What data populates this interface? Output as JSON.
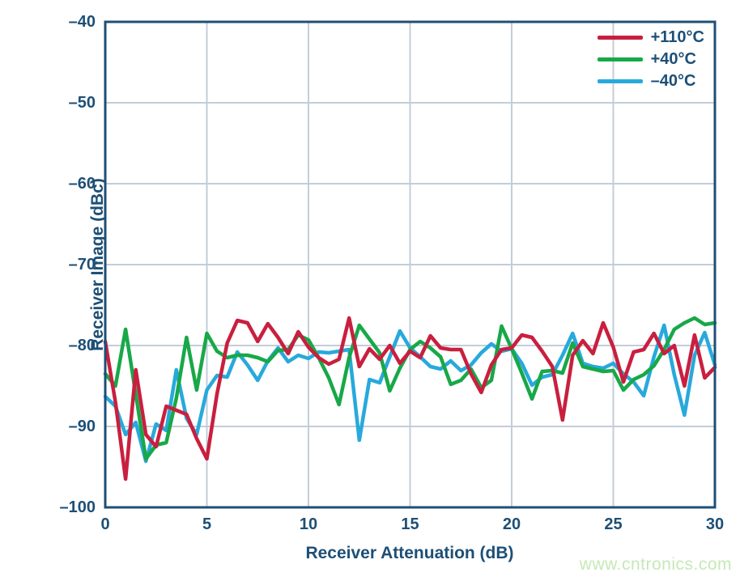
{
  "colors": {
    "navy": "#1d4f76",
    "grid": "#c3cdda",
    "background": "#ffffff",
    "watermark": "#c5e8b6"
  },
  "watermark_text": "www.cntronics.com",
  "chart_data": {
    "type": "line",
    "title": "",
    "xlabel": "Receiver Attenuation (dB)",
    "ylabel": "Receiver Image (dBc)",
    "xlim": [
      0,
      30
    ],
    "ylim": [
      -100,
      -40
    ],
    "grid": true,
    "legend_position": "top-right-inside",
    "x_tick_values": [
      0,
      5,
      10,
      15,
      20,
      25,
      30
    ],
    "x_tick_labels": [
      "0",
      "5",
      "10",
      "15",
      "20",
      "25",
      "30"
    ],
    "y_tick_values": [
      -40,
      -50,
      -60,
      -70,
      -80,
      -90,
      -100
    ],
    "y_tick_labels": [
      "–40",
      "–50",
      "–60",
      "–70",
      "–80",
      "–90",
      "–100"
    ],
    "x_start": 0,
    "x_step": 0.5,
    "series": [
      {
        "name": "–40°C",
        "color": "#27a9dc",
        "values": [
          -86.3,
          -87.5,
          -91,
          -89.5,
          -94.3,
          -89.7,
          -90.5,
          -83,
          -89,
          -91,
          -85.5,
          -83.7,
          -83.9,
          -80.8,
          -82.4,
          -84.3,
          -81.9,
          -80.3,
          -82,
          -81.2,
          -81.6,
          -80.8,
          -80.9,
          -80.7,
          -80.5,
          -91.7,
          -84.2,
          -84.6,
          -81.4,
          -78.2,
          -80.3,
          -81.4,
          -82.6,
          -82.9,
          -81.9,
          -83.1,
          -82.4,
          -80.9,
          -79.8,
          -80.7,
          -80.4,
          -82.2,
          -84.9,
          -83.9,
          -83.6,
          -81.2,
          -78.5,
          -82.2,
          -82.6,
          -82.8,
          -82.2,
          -83.5,
          -84.5,
          -86.2,
          -81.4,
          -77.5,
          -83.6,
          -88.6,
          -81.2,
          -78.4,
          -82.4
        ]
      },
      {
        "name": "+40°C",
        "color": "#18a848",
        "values": [
          -83.5,
          -85,
          -78,
          -86,
          -94,
          -92.3,
          -92,
          -86.5,
          -79,
          -85.5,
          -78.5,
          -80.7,
          -81.5,
          -81.2,
          -81.2,
          -81.5,
          -82,
          -80.6,
          -80.5,
          -78.7,
          -79.3,
          -81.5,
          -84,
          -87.3,
          -81.5,
          -77.5,
          -79.2,
          -80.9,
          -85.6,
          -82.8,
          -80.5,
          -79.5,
          -80.3,
          -81.4,
          -84.8,
          -84.3,
          -82.9,
          -85.2,
          -84.3,
          -77.6,
          -80.4,
          -83.4,
          -86.6,
          -83.2,
          -83.1,
          -83.4,
          -79.7,
          -82.6,
          -82.9,
          -83.2,
          -83.1,
          -85.5,
          -84.2,
          -83.6,
          -82.5,
          -80.5,
          -78,
          -77.2,
          -76.6,
          -77.4,
          -77.2
        ]
      },
      {
        "name": "+110°C",
        "color": "#c91f3f",
        "values": [
          -79.5,
          -87,
          -96.5,
          -83,
          -91,
          -92.5,
          -87.5,
          -88,
          -88.5,
          -91.5,
          -94,
          -86,
          -79.7,
          -76.9,
          -77.2,
          -79.5,
          -77.3,
          -79,
          -81,
          -78.3,
          -80.2,
          -81.5,
          -82.3,
          -81.7,
          -76.6,
          -82.6,
          -80.4,
          -81.7,
          -80,
          -82.2,
          -80.7,
          -81.5,
          -78.8,
          -80.3,
          -80.5,
          -80.5,
          -83.5,
          -85.8,
          -82.4,
          -80.5,
          -80.3,
          -78.7,
          -79,
          -80.7,
          -82.6,
          -89.2,
          -81.2,
          -79.4,
          -81,
          -77.2,
          -80.2,
          -84.5,
          -80.8,
          -80.5,
          -78.5,
          -81,
          -80,
          -85,
          -78.7,
          -84,
          -82.7
        ]
      }
    ],
    "legend_order": [
      "+110°C",
      "+40°C",
      "–40°C"
    ]
  }
}
